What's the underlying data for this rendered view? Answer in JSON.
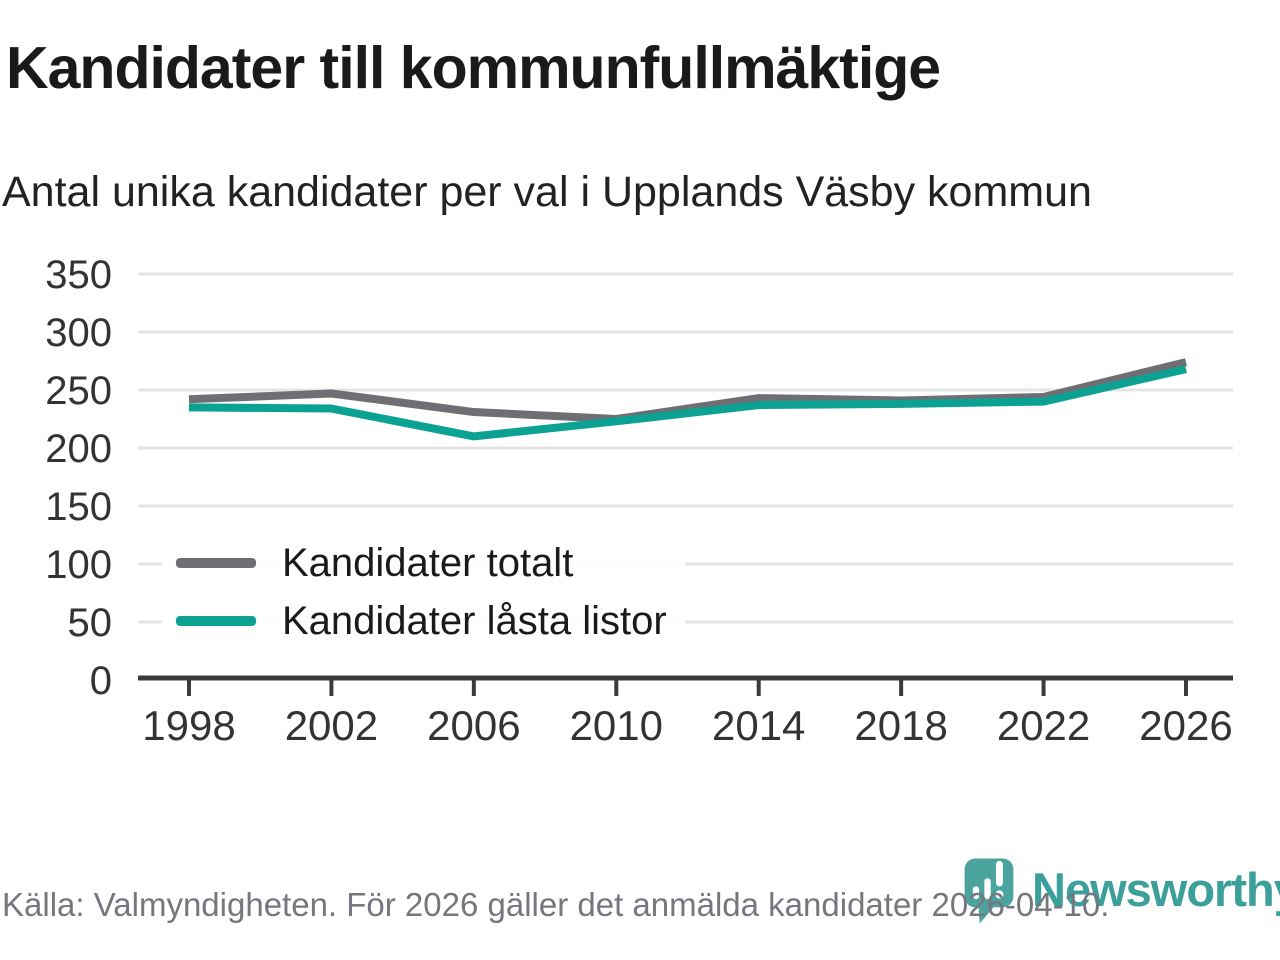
{
  "header": {
    "title": "Kandidater till kommunfullmäktige",
    "subtitle": "Antal unika kandidater per val i Upplands Väsby kommun"
  },
  "chart_data": {
    "type": "line",
    "title": "Kandidater till kommunfullmäktige",
    "subtitle": "Antal unika kandidater per val i Upplands Väsby kommun",
    "categories": [
      "1998",
      "2002",
      "2006",
      "2010",
      "2014",
      "2018",
      "2022",
      "2026"
    ],
    "series": [
      {
        "name": "Kandidater totalt",
        "color": "#6e6e73",
        "values": [
          242,
          247,
          231,
          225,
          243,
          241,
          244,
          274
        ]
      },
      {
        "name": "Kandidater låsta listor",
        "color": "#0ba294",
        "values": [
          235,
          234,
          210,
          223,
          237,
          238,
          240,
          268
        ]
      }
    ],
    "xlabel": "",
    "ylabel": "",
    "ylim": [
      0,
      350
    ],
    "ytick_step": 50,
    "grid": true,
    "legend_position": "inside-left"
  },
  "footer": {
    "source": "Källa: Valmyndigheten. För 2026 gäller det anmälda kandidater 2026-04-10.",
    "logo_text": "Newsworthy"
  },
  "colors": {
    "series_total": "#6e6e73",
    "series_locked": "#0ba294",
    "logo_teal": "#4ba39e",
    "axis": "#3b3b3b",
    "gridline": "#e4e4e4",
    "tick_label": "#333333",
    "source_text": "#76767e"
  }
}
